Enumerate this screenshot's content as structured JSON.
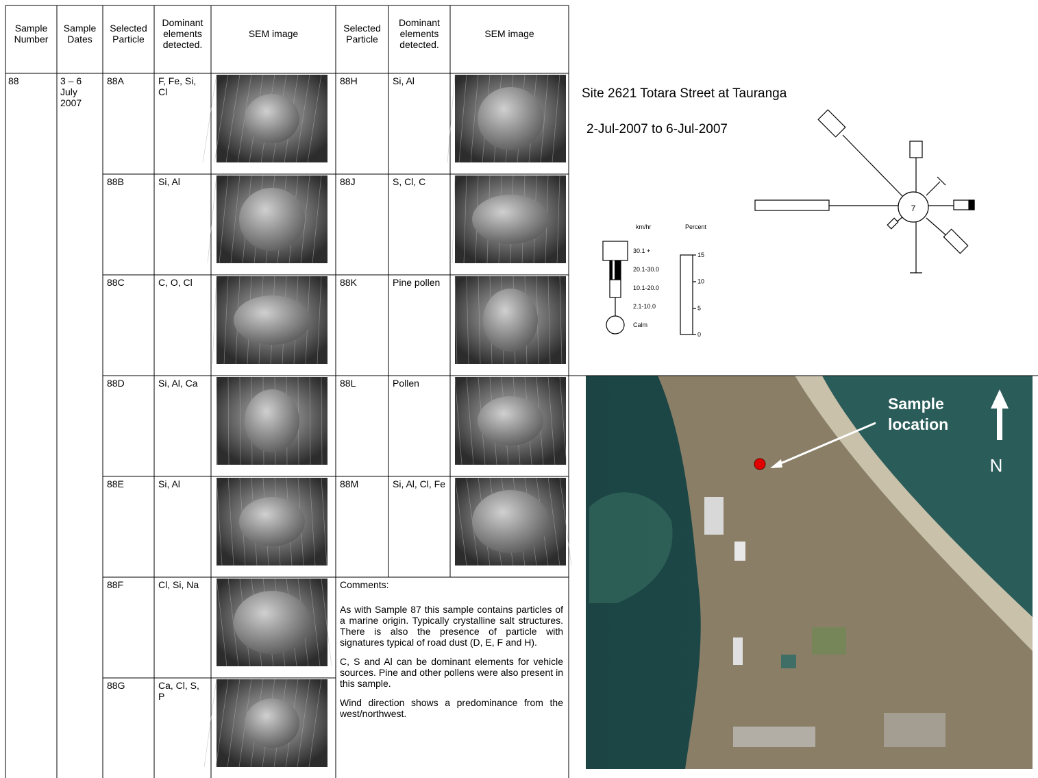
{
  "table": {
    "header": [
      "Sample Number",
      "Sample Dates",
      "Selected Particle",
      "Dominant elements detected.",
      "SEM image",
      "Selected Particle",
      "Dominant elements detected.",
      "SEM image"
    ],
    "sample_number": "88",
    "sample_dates": "3 – 6 July 2007",
    "left_rows": [
      {
        "particle": "88A",
        "elements": "F, Fe, Si, Cl"
      },
      {
        "particle": "88B",
        "elements": "Si, Al"
      },
      {
        "particle": "88C",
        "elements": "C, O, Cl"
      },
      {
        "particle": "88D",
        "elements": "Si, Al, Ca"
      },
      {
        "particle": "88E",
        "elements": "Si, Al"
      },
      {
        "particle": "88F",
        "elements": "Cl, Si, Na"
      },
      {
        "particle": "88G",
        "elements": "Ca, Cl, S, P"
      }
    ],
    "right_rows": [
      {
        "particle": "88H",
        "elements": "Si, Al"
      },
      {
        "particle": "88J",
        "elements": "S, Cl, C"
      },
      {
        "particle": "88K",
        "elements": "Pine pollen"
      },
      {
        "particle": "88L",
        "elements": "Pollen"
      },
      {
        "particle": "88M",
        "elements": "Si, Al, Cl, Fe"
      }
    ],
    "comments": {
      "heading": "Comments:",
      "paragraphs": [
        "As with Sample 87 this sample contains particles of a marine origin. Typically crystalline salt structures. There is also the presence of particle with signatures typical of road dust (D, E, F and H).",
        "C, S and Al can be dominant elements for vehicle sources. Pine and other pollens were also present in this sample.",
        "Wind direction shows a predominance from the west/northwest."
      ]
    }
  },
  "wind_rose": {
    "title": "Site 2621 Totara Street at Tauranga",
    "period": "2-Jul-2007 to  6-Jul-2007",
    "calm": "7",
    "speed_heading": "km/hr",
    "percent_heading": "Percent",
    "speed_classes": [
      "30.1 +",
      "20.1-30.0",
      "10.1-20.0",
      "2.1-10.0",
      "Calm"
    ],
    "percent_scale": [
      "15",
      "10",
      "5",
      "0"
    ]
  },
  "map": {
    "label": "Sample location",
    "north": "N"
  }
}
